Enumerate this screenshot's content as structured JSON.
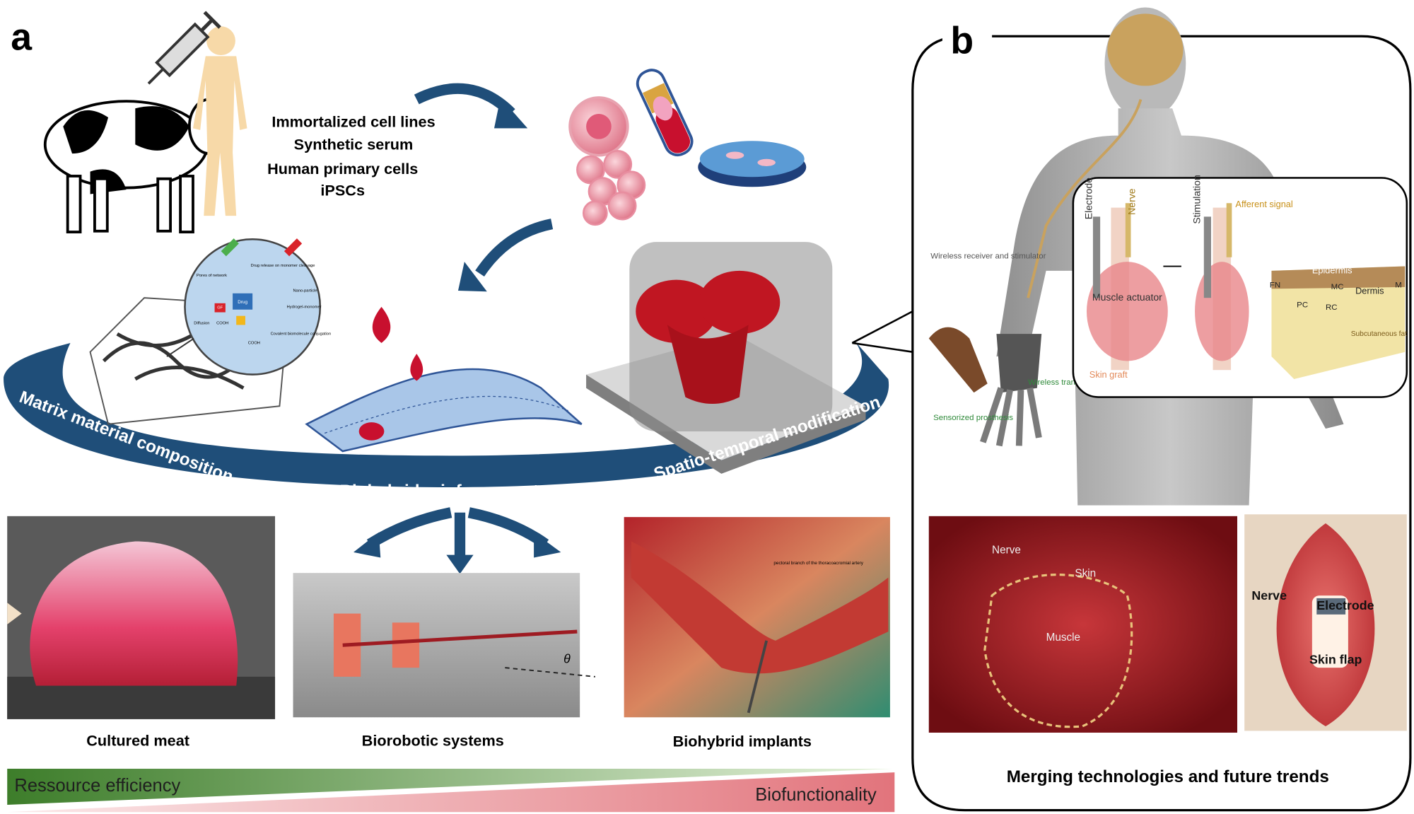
{
  "panel_a": {
    "label": "a",
    "sources": [
      "Immortalized cell lines",
      "Synthetic serum",
      "Human primary cells",
      "iPSCs"
    ],
    "hydrogel_labels": [
      "Drug release on monomer cleavage",
      "Pores of network",
      "Drug",
      "GF",
      "Nano-particle",
      "Hydrogel-monomer",
      "Diffusion",
      "COOH",
      "COOH",
      "Covalent biomolecule conjugation"
    ],
    "ring_labels": [
      "Matrix material composition",
      "Biohybrid reinforcement",
      "Spatio-temporal modification"
    ],
    "photo_labels": [
      "pectoral branch of the thoracoacromial artery",
      "θ"
    ],
    "applications": [
      "Cultured meat",
      "Biorobotic systems",
      "Biohybrid implants"
    ],
    "gradient_labels": [
      "Ressource efficiency",
      "Biofunctionality"
    ]
  },
  "panel_b": {
    "label": "b",
    "body_labels": [
      "Wireless receiver and stimulator",
      "Wireless transmitter",
      "Sensorized prosthesis"
    ],
    "inset_labels": [
      "Electrode",
      "Nerve",
      "Stimulation",
      "Afferent signal",
      "Muscle actuator",
      "Skin graft",
      "Epidermis",
      "FN",
      "MC",
      "Dermis",
      "M",
      "PC",
      "RC",
      "Subcutaneous fat"
    ],
    "photo_labels": [
      "Nerve",
      "Skin",
      "Muscle"
    ],
    "diagram_labels": [
      "Nerve",
      "Electrode",
      "Skin flap"
    ],
    "caption": "Merging technologies and future trends"
  }
}
